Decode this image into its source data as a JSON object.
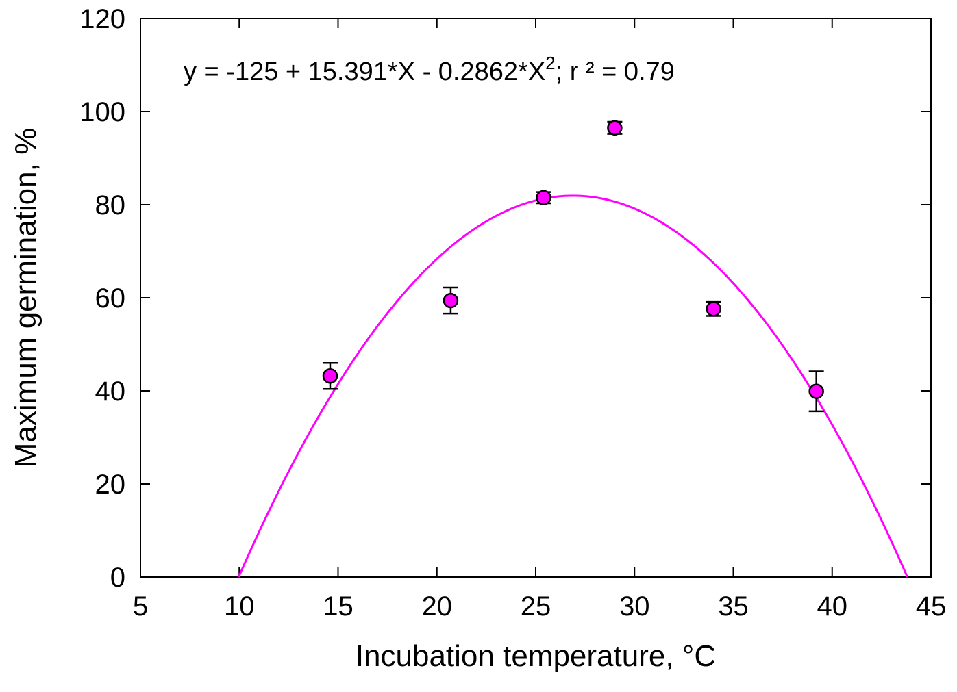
{
  "chart_data": {
    "type": "scatter",
    "xlabel": "Incubation temperature, °C",
    "ylabel": "Maximum germination, %",
    "xlim": [
      5,
      45
    ],
    "ylim": [
      0,
      120
    ],
    "x_ticks": [
      5,
      10,
      15,
      20,
      25,
      30,
      35,
      40,
      45
    ],
    "y_ticks": [
      0,
      20,
      40,
      60,
      80,
      100,
      120
    ],
    "grid": false,
    "annotation": {
      "prefix": "y = -125 + 15.391*X - 0.2862*X",
      "superscript": "2",
      "suffix": "; r ² = 0.79"
    },
    "points": {
      "color": "#ff00ff",
      "x": [
        14.6,
        20.7,
        25.4,
        29.0,
        34.0,
        39.2
      ],
      "y": [
        43.2,
        59.4,
        81.5,
        96.5,
        57.6,
        39.9
      ],
      "err": [
        2.8,
        2.8,
        1.2,
        1.3,
        1.5,
        4.3
      ]
    },
    "fit": {
      "type": "quadratic",
      "color": "#ff00ff",
      "coefficients": [
        -125,
        15.391,
        -0.2862
      ]
    }
  }
}
